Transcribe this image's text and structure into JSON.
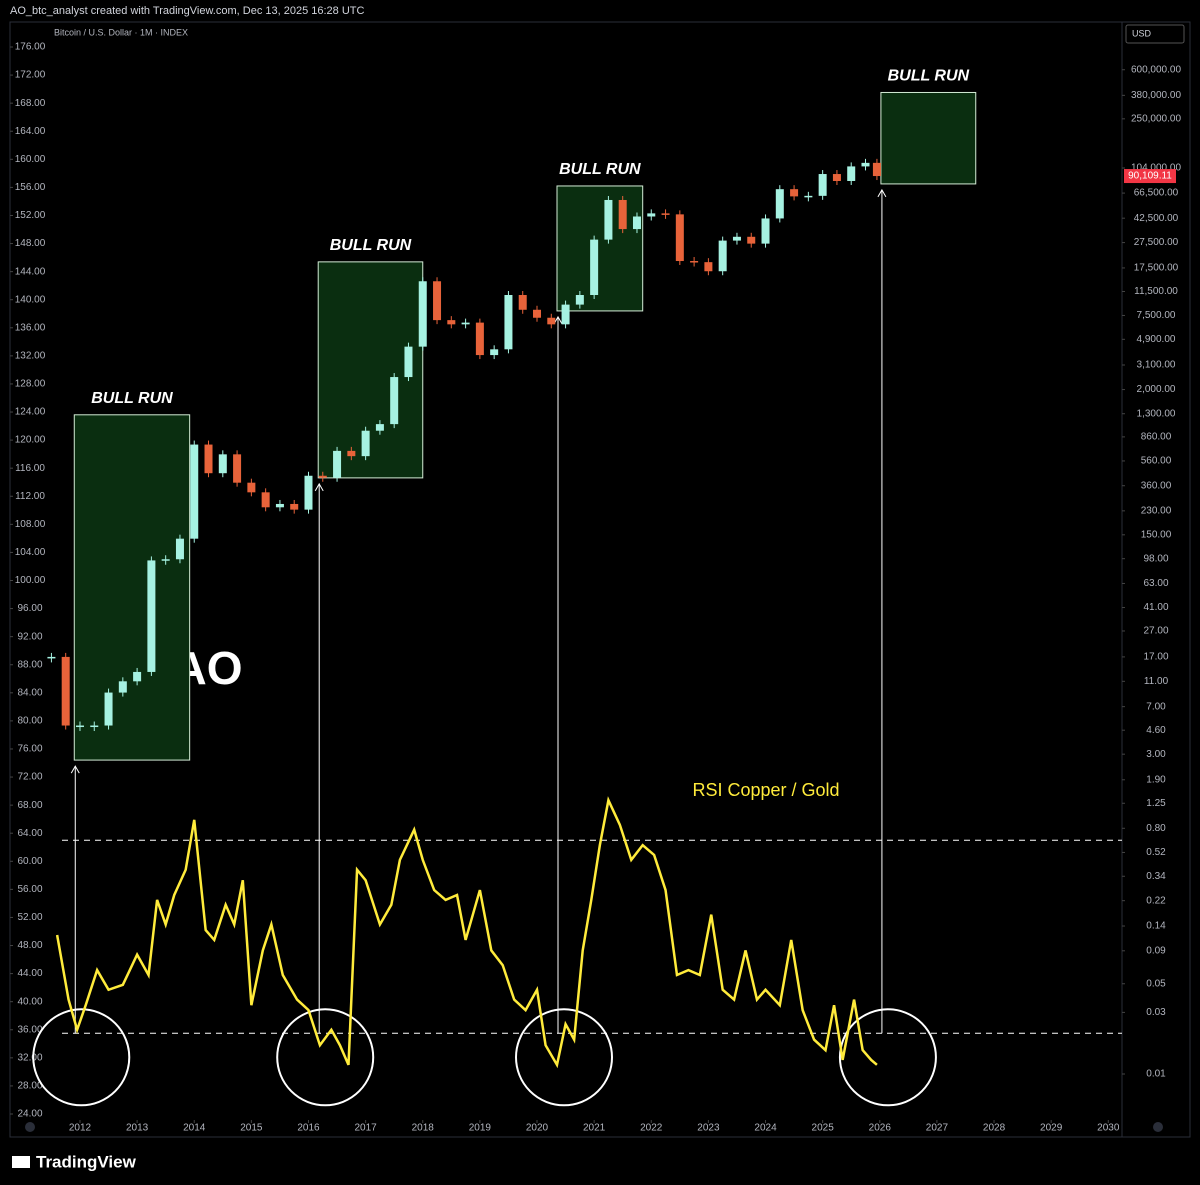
{
  "header": "AO_btc_analyst created with TradingView.com, Dec 13, 2025 16:28 UTC",
  "footer": "TradingView",
  "chart_data": {
    "type": "candlestick",
    "subtitle": "Bitcoin / U.S. Dollar · 1M · INDEX",
    "currency": "USD",
    "xlim": [
      2010.775,
      2030.24
    ],
    "xticks": [
      2012,
      2013,
      2014,
      2015,
      2016,
      2017,
      2018,
      2019,
      2020,
      2021,
      2022,
      2023,
      2024,
      2025,
      2026,
      2027,
      2028,
      2029,
      2030
    ],
    "ylim": [
      24,
      176
    ],
    "yticks": [
      {
        "value": 176,
        "label": "176.00"
      },
      {
        "value": 172,
        "label": "172.00"
      },
      {
        "value": 168,
        "label": "168.00"
      },
      {
        "value": 164,
        "label": "164.00"
      },
      {
        "value": 160,
        "label": "160.00"
      },
      {
        "value": 156,
        "label": "156.00"
      },
      {
        "value": 152,
        "label": "152.00"
      },
      {
        "value": 148,
        "label": "148.00"
      },
      {
        "value": 144,
        "label": "144.00"
      },
      {
        "value": 140,
        "label": "140.00"
      },
      {
        "value": 136,
        "label": "136.00"
      },
      {
        "value": 132,
        "label": "132.00"
      },
      {
        "value": 128,
        "label": "128.00"
      },
      {
        "value": 124,
        "label": "124.00"
      },
      {
        "value": 120,
        "label": "120.00"
      },
      {
        "value": 116,
        "label": "116.00"
      },
      {
        "value": 112,
        "label": "112.00"
      },
      {
        "value": 108,
        "label": "108.00"
      },
      {
        "value": 104,
        "label": "104.00"
      },
      {
        "value": 100,
        "label": "100.00"
      },
      {
        "value": 96,
        "label": "96.00"
      },
      {
        "value": 92,
        "label": "92.00"
      },
      {
        "value": 88,
        "label": "88.00"
      },
      {
        "value": 84,
        "label": "84.00"
      },
      {
        "value": 80,
        "label": "80.00"
      },
      {
        "value": 76,
        "label": "76.00"
      },
      {
        "value": 72,
        "label": "72.00"
      },
      {
        "value": 68,
        "label": "68.00"
      },
      {
        "value": 64,
        "label": "64.00"
      },
      {
        "value": 60,
        "label": "60.00"
      },
      {
        "value": 56,
        "label": "56.00"
      },
      {
        "value": 52,
        "label": "52.00"
      },
      {
        "value": 48,
        "label": "48.00"
      },
      {
        "value": 44,
        "label": "44.00"
      },
      {
        "value": 40,
        "label": "40.00"
      },
      {
        "value": 36,
        "label": "36.00"
      },
      {
        "value": 32,
        "label": "32.00"
      },
      {
        "value": 28,
        "label": "28.00"
      },
      {
        "value": 24,
        "label": "24.00"
      }
    ],
    "y2lim": [
      0.0049,
      900000
    ],
    "y2scale": "log",
    "y2ticks": [
      {
        "value": 600000,
        "label": "600,000.00"
      },
      {
        "value": 380000,
        "label": "380,000.00"
      },
      {
        "value": 250000,
        "label": "250,000.00"
      },
      {
        "value": 104000,
        "label": "104,000.00"
      },
      {
        "value": 66500,
        "label": "66,500.00"
      },
      {
        "value": 42500,
        "label": "42,500.00"
      },
      {
        "value": 27500,
        "label": "27,500.00"
      },
      {
        "value": 17500,
        "label": "17,500.00"
      },
      {
        "value": 11500,
        "label": "11,500.00"
      },
      {
        "value": 7500,
        "label": "7,500.00"
      },
      {
        "value": 4900,
        "label": "4,900.00"
      },
      {
        "value": 3100,
        "label": "3,100.00"
      },
      {
        "value": 2000,
        "label": "2,000.00"
      },
      {
        "value": 1300,
        "label": "1,300.00"
      },
      {
        "value": 860,
        "label": "860.00"
      },
      {
        "value": 560,
        "label": "560.00"
      },
      {
        "value": 360,
        "label": "360.00"
      },
      {
        "value": 230,
        "label": "230.00"
      },
      {
        "value": 150,
        "label": "150.00"
      },
      {
        "value": 98,
        "label": "98.00"
      },
      {
        "value": 63,
        "label": "63.00"
      },
      {
        "value": 41,
        "label": "41.00"
      },
      {
        "value": 27,
        "label": "27.00"
      },
      {
        "value": 17,
        "label": "17.00"
      },
      {
        "value": 11,
        "label": "11.00"
      },
      {
        "value": 7,
        "label": "7.00"
      },
      {
        "value": 4.6,
        "label": "4.60"
      },
      {
        "value": 3,
        "label": "3.00"
      },
      {
        "value": 1.9,
        "label": "1.90"
      },
      {
        "value": 1.25,
        "label": "1.25"
      },
      {
        "value": 0.8,
        "label": "0.80"
      },
      {
        "value": 0.52,
        "label": "0.52"
      },
      {
        "value": 0.34,
        "label": "0.34"
      },
      {
        "value": 0.22,
        "label": "0.22"
      },
      {
        "value": 0.14,
        "label": "0.14"
      },
      {
        "value": 0.09,
        "label": "0.09"
      },
      {
        "value": 0.05,
        "label": "0.05"
      },
      {
        "value": 0.03,
        "label": "0.03"
      },
      {
        "value": 0.01,
        "label": "0.01"
      }
    ],
    "series": [
      {
        "axis": "y2",
        "up_color": "#a6f2e2",
        "down_color": "#e8633a",
        "x": [
          2011.5,
          2011.75,
          2012.0,
          2012.25,
          2012.5,
          2012.75,
          2013.0,
          2013.25,
          2013.5,
          2013.75,
          2014.0,
          2014.25,
          2014.5,
          2014.75,
          2015.0,
          2015.25,
          2015.5,
          2015.75,
          2016.0,
          2016.25,
          2016.5,
          2016.75,
          2017.0,
          2017.25,
          2017.5,
          2017.75,
          2018.0,
          2018.25,
          2018.5,
          2018.75,
          2019.0,
          2019.25,
          2019.5,
          2019.75,
          2020.0,
          2020.25,
          2020.5,
          2020.75,
          2021.0,
          2021.25,
          2021.5,
          2021.75,
          2022.0,
          2022.25,
          2022.5,
          2022.75,
          2023.0,
          2023.25,
          2023.5,
          2023.75,
          2024.0,
          2024.25,
          2024.5,
          2024.75,
          2025.0,
          2025.25,
          2025.5,
          2025.75,
          2025.95
        ],
        "values": [
          17,
          5,
          5,
          5,
          9,
          11,
          13,
          95,
          97,
          140,
          750,
          450,
          630,
          380,
          320,
          245,
          260,
          235,
          430,
          415,
          670,
          610,
          960,
          1080,
          2500,
          4300,
          13800,
          6900,
          6400,
          6600,
          3700,
          4100,
          10800,
          8300,
          7200,
          6400,
          9100,
          10800,
          29000,
          58800,
          35000,
          43800,
          46300,
          45500,
          19800,
          19400,
          16500,
          28500,
          30500,
          27000,
          42300,
          71300,
          62700,
          63300,
          93400,
          82500,
          107000,
          114000,
          90109.11
        ]
      },
      {
        "name": "RSI Copper / Gold",
        "axis": "y",
        "color": "#ffeb3b",
        "x": [
          2011.6,
          2011.8,
          2011.95,
          2012.1,
          2012.3,
          2012.5,
          2012.75,
          2013.0,
          2013.2,
          2013.35,
          2013.5,
          2013.65,
          2013.85,
          2014.0,
          2014.2,
          2014.35,
          2014.55,
          2014.7,
          2014.85,
          2015.0,
          2015.2,
          2015.35,
          2015.55,
          2015.8,
          2016.0,
          2016.2,
          2016.4,
          2016.55,
          2016.7,
          2016.85,
          2017.0,
          2017.25,
          2017.45,
          2017.6,
          2017.85,
          2018.0,
          2018.2,
          2018.4,
          2018.6,
          2018.75,
          2019.0,
          2019.2,
          2019.4,
          2019.6,
          2019.8,
          2020.0,
          2020.15,
          2020.35,
          2020.5,
          2020.65,
          2020.8,
          2020.95,
          2021.1,
          2021.25,
          2021.45,
          2021.65,
          2021.85,
          2022.05,
          2022.25,
          2022.45,
          2022.65,
          2022.85,
          2023.05,
          2023.25,
          2023.45,
          2023.65,
          2023.85,
          2024.0,
          2024.25,
          2024.45,
          2024.65,
          2024.85,
          2025.05,
          2025.2,
          2025.35,
          2025.55,
          2025.7,
          2025.85,
          2025.95
        ],
        "values": [
          49.5,
          40.3,
          36,
          39.5,
          44.5,
          41.7,
          42.4,
          46.7,
          43.8,
          54.5,
          51,
          55.2,
          58.8,
          65.9,
          50.2,
          48.8,
          53.8,
          51,
          57.3,
          39.5,
          47.3,
          51,
          43.8,
          40.3,
          38.8,
          33.8,
          36,
          33.8,
          31,
          58.8,
          57.3,
          51,
          53.8,
          60.2,
          64.5,
          60.2,
          55.9,
          54.5,
          55.2,
          48.8,
          55.9,
          47.3,
          45.2,
          40.3,
          38.8,
          41.7,
          33.8,
          31,
          36.8,
          34.6,
          47.3,
          54.5,
          62.3,
          68.7,
          65.2,
          60.2,
          62.3,
          60.9,
          55.9,
          43.8,
          44.5,
          43.8,
          52.4,
          41.7,
          40.3,
          47.3,
          40.3,
          41.7,
          39.5,
          48.8,
          38.8,
          34.6,
          33.1,
          39.5,
          31.7,
          40.3,
          33.1,
          31.7,
          31
        ]
      }
    ],
    "last_price": {
      "value": 90109.11,
      "label": "90,109.11"
    },
    "levels": [
      63,
      35.5
    ],
    "zones": [
      {
        "label": "BULL RUN",
        "x": [
          2011.9,
          2013.92
        ],
        "y": [
          2.7,
          1275
        ]
      },
      {
        "label": "BULL RUN",
        "x": [
          2016.17,
          2018.0
        ],
        "y": [
          414,
          19500
        ]
      },
      {
        "label": "BULL RUN",
        "x": [
          2020.35,
          2021.85
        ],
        "y": [
          8130,
          75500
        ]
      },
      {
        "label": "BULL RUN",
        "x": [
          2026.02,
          2027.68
        ],
        "y": [
          78300,
          400000
        ]
      }
    ],
    "annotation": "AO"
  }
}
